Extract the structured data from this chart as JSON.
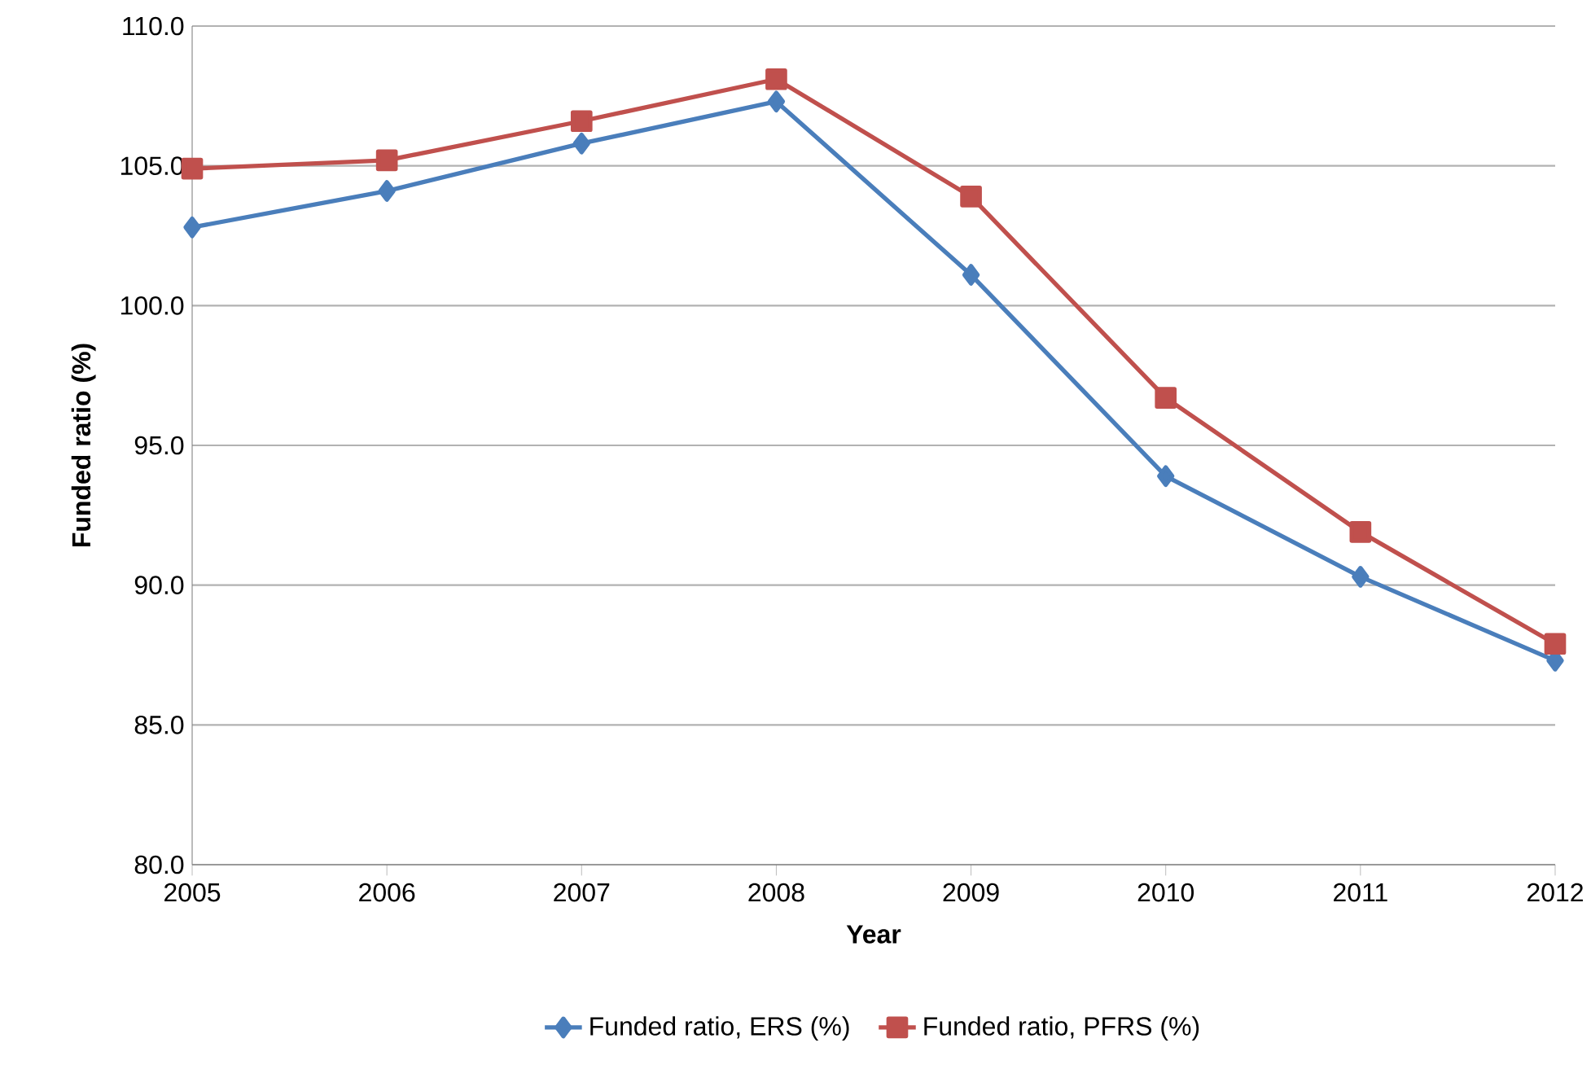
{
  "chart_data": {
    "type": "line",
    "xlabel": "Year",
    "ylabel": "Funded ratio (%)",
    "categories": [
      "2005",
      "2006",
      "2007",
      "2008",
      "2009",
      "2010",
      "2011",
      "2012"
    ],
    "ylim": [
      80,
      110
    ],
    "yticks": [
      {
        "value": 80,
        "label": "80.0"
      },
      {
        "value": 85,
        "label": "85.0"
      },
      {
        "value": 90,
        "label": "90.0"
      },
      {
        "value": 95,
        "label": "95.0"
      },
      {
        "value": 100,
        "label": "100.0"
      },
      {
        "value": 105,
        "label": "105.0"
      },
      {
        "value": 110,
        "label": "110.0"
      }
    ],
    "grid": "y",
    "legend": "bottom",
    "line_style": "solid",
    "series": [
      {
        "name": "Funded ratio, ERS (%)",
        "color": "#4a7ebb",
        "marker": "diamond",
        "values": [
          102.8,
          104.1,
          105.8,
          107.3,
          101.1,
          93.9,
          90.3,
          87.3
        ]
      },
      {
        "name": "Funded ratio, PFRS (%)",
        "color": "#c0504d",
        "marker": "square",
        "values": [
          104.9,
          105.2,
          106.6,
          108.1,
          103.9,
          96.7,
          91.9,
          87.9
        ]
      }
    ]
  }
}
